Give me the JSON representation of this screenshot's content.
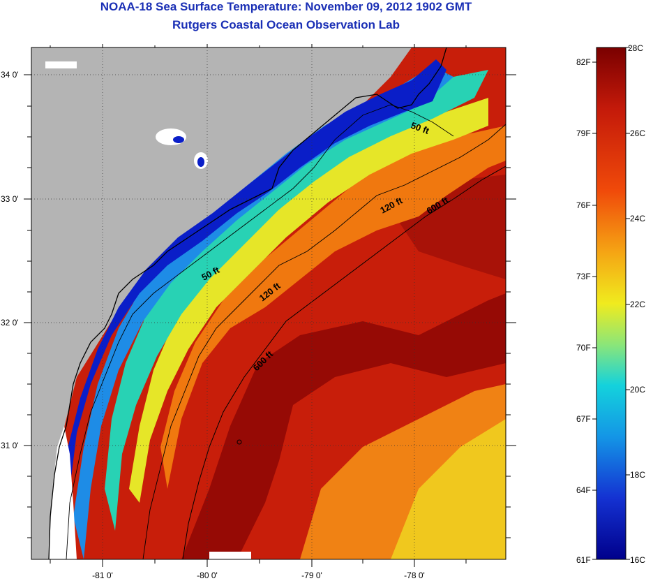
{
  "header": {
    "title": "NOAA-18 Sea Surface Temperature:  November 09, 2012 1902 GMT",
    "subtitle": "Rutgers Coastal Ocean Observation Lab"
  },
  "map": {
    "lon_labels": [
      "-81 0'",
      "-80 0'",
      "-79 0'",
      "-78 0'"
    ],
    "lat_labels": [
      "34 0'",
      "33 0'",
      "32 0'",
      "31 0'"
    ],
    "contour_labels": [
      "50 ft",
      "50 ft",
      "120 ft",
      "120 ft",
      "600 ft",
      "600 ft"
    ]
  },
  "colorbar": {
    "fahrenheit": [
      "82F",
      "79F",
      "76F",
      "73F",
      "70F",
      "67F",
      "64F",
      "61F"
    ],
    "celsius": [
      "28C",
      "26C",
      "24C",
      "22C",
      "20C",
      "18C",
      "16C"
    ],
    "colors": [
      "#8b0000",
      "#d42a0a",
      "#f57d0a",
      "#f5e61e",
      "#14c8d2",
      "#1464e6",
      "#00008b"
    ]
  }
}
